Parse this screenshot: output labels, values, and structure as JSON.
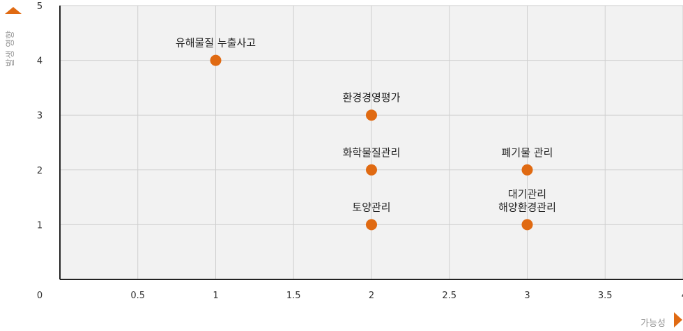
{
  "chart_data": {
    "type": "scatter",
    "title": "",
    "xlabel": "가능성",
    "ylabel": "발생 영향",
    "xlim": [
      0,
      4
    ],
    "ylim": [
      0,
      5
    ],
    "x_ticks": [
      0,
      0.5,
      1,
      1.5,
      2,
      2.5,
      3,
      3.5,
      4
    ],
    "x_tick_labels": [
      "0",
      "0.5",
      "1",
      "1.5",
      "2",
      "2.5",
      "3",
      "3.5",
      "4"
    ],
    "y_ticks": [
      1,
      2,
      3,
      4,
      5
    ],
    "y_tick_labels": [
      "1",
      "2",
      "3",
      "4",
      "5"
    ],
    "grid": true,
    "legend": "none",
    "points": [
      {
        "x": 1,
        "y": 4,
        "label": [
          "유해물질 누출사고"
        ]
      },
      {
        "x": 2,
        "y": 3,
        "label": [
          "환경경영평가"
        ]
      },
      {
        "x": 2,
        "y": 2,
        "label": [
          "화학물질관리"
        ]
      },
      {
        "x": 2,
        "y": 1,
        "label": [
          "토양관리"
        ]
      },
      {
        "x": 3,
        "y": 2,
        "label": [
          "폐기물 관리"
        ]
      },
      {
        "x": 3,
        "y": 1,
        "label": [
          "대기관리",
          "해양환경관리"
        ]
      }
    ],
    "colors": {
      "point": "#e06a12",
      "arrow": "#e06a12",
      "plot_bg": "#f2f2f2",
      "grid": "#cfcfcf",
      "axis": "#222222"
    }
  }
}
